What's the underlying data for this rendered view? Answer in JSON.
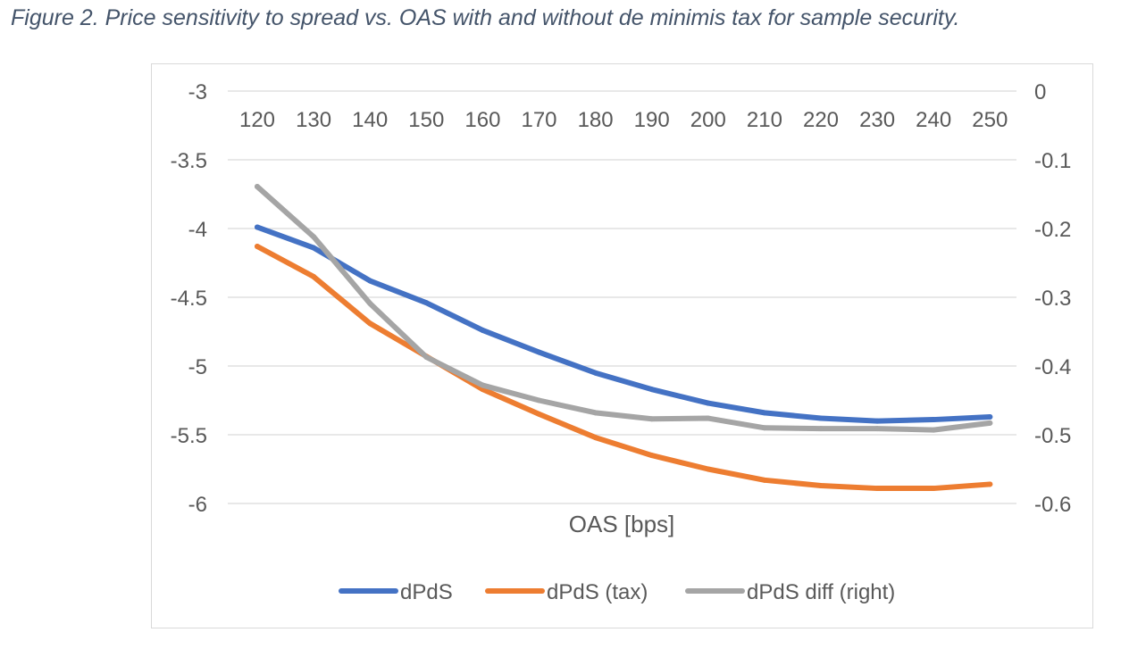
{
  "figure": {
    "title": "Figure 2. Price sensitivity to spread vs. OAS with and without de minimis tax for sample security."
  },
  "chart_data": {
    "type": "line",
    "title": "",
    "xlabel": "OAS [bps]",
    "ylabel": "",
    "categories": [
      "120",
      "130",
      "140",
      "150",
      "160",
      "170",
      "180",
      "190",
      "200",
      "210",
      "220",
      "230",
      "240",
      "250"
    ],
    "left_axis": {
      "ylim": [
        -6,
        -3
      ],
      "ticks": [
        "-3",
        "-3.5",
        "-4",
        "-4.5",
        "-5",
        "-5.5",
        "-6"
      ]
    },
    "right_axis": {
      "ylim": [
        -0.6,
        0
      ],
      "ticks": [
        "0",
        "-0.1",
        "-0.2",
        "-0.3",
        "-0.4",
        "-0.5",
        "-0.6"
      ]
    },
    "grid": true,
    "x_axis_position": "top",
    "legend_position": "bottom",
    "series": [
      {
        "name": "dPdS",
        "axis": "left",
        "color": "#4472c4",
        "values": [
          -3.99,
          -4.14,
          -4.38,
          -4.54,
          -4.74,
          -4.9,
          -5.05,
          -5.17,
          -5.27,
          -5.34,
          -5.38,
          -5.4,
          -5.39,
          -5.37
        ]
      },
      {
        "name": "dPdS (tax)",
        "axis": "left",
        "color": "#ed7d31",
        "values": [
          -4.13,
          -4.35,
          -4.69,
          -4.93,
          -5.17,
          -5.35,
          -5.52,
          -5.65,
          -5.75,
          -5.83,
          -5.87,
          -5.89,
          -5.89,
          -5.86
        ]
      },
      {
        "name": "dPdS diff (right)",
        "axis": "right",
        "color": "#a5a5a5",
        "values": [
          -0.139,
          -0.212,
          -0.309,
          -0.387,
          -0.428,
          -0.45,
          -0.468,
          -0.477,
          -0.476,
          -0.49,
          -0.491,
          -0.491,
          -0.493,
          -0.483
        ]
      }
    ]
  }
}
